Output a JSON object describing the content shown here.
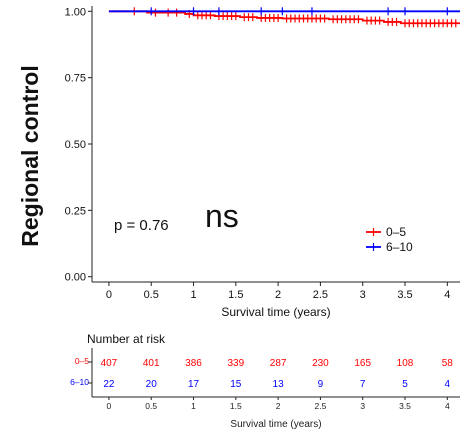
{
  "chart_data": {
    "type": "line",
    "subtype": "kaplan-meier",
    "ylabel": "Regional control",
    "xlabel": "Survival time (years)",
    "xlim": [
      -0.2,
      4.15
    ],
    "ylim": [
      -0.02,
      1.02
    ],
    "x_ticks": [
      "0",
      "0.5",
      "1",
      "1.5",
      "2",
      "2.5",
      "3",
      "3.5",
      "4"
    ],
    "y_ticks": [
      "0.00",
      "0.25",
      "0.50",
      "0.75",
      "1.00"
    ],
    "grid": false,
    "legend_position": "bottom-right",
    "annotations": {
      "pvalue": "p = 0.76",
      "significance": "ns"
    },
    "series": [
      {
        "name": "0–5",
        "color": "#ff0000",
        "steps": [
          [
            0,
            1.0
          ],
          [
            0.45,
            0.995
          ],
          [
            0.9,
            0.99
          ],
          [
            1.0,
            0.985
          ],
          [
            1.25,
            0.982
          ],
          [
            1.55,
            0.978
          ],
          [
            1.75,
            0.975
          ],
          [
            2.05,
            0.973
          ],
          [
            2.6,
            0.97
          ],
          [
            3.0,
            0.965
          ],
          [
            3.25,
            0.96
          ],
          [
            3.45,
            0.955
          ],
          [
            4.15,
            0.955
          ]
        ],
        "censor_times": [
          0.3,
          0.55,
          0.7,
          0.8,
          0.95,
          1.05,
          1.1,
          1.15,
          1.2,
          1.3,
          1.35,
          1.4,
          1.45,
          1.5,
          1.6,
          1.65,
          1.7,
          1.8,
          1.85,
          1.9,
          1.95,
          2.0,
          2.1,
          2.15,
          2.2,
          2.25,
          2.3,
          2.35,
          2.4,
          2.45,
          2.5,
          2.55,
          2.65,
          2.7,
          2.75,
          2.8,
          2.85,
          2.9,
          2.95,
          3.05,
          3.1,
          3.15,
          3.2,
          3.3,
          3.35,
          3.4,
          3.5,
          3.55,
          3.6,
          3.65,
          3.7,
          3.75,
          3.8,
          3.85,
          3.9,
          3.95,
          4.0,
          4.05,
          4.1
        ]
      },
      {
        "name": "6–10",
        "color": "#0000ff",
        "steps": [
          [
            0,
            1.0
          ],
          [
            4.15,
            1.0
          ]
        ],
        "censor_times": [
          0.5,
          1.0,
          1.3,
          1.8,
          2.05,
          2.4,
          3.3,
          3.5,
          4.0
        ]
      }
    ]
  },
  "risk_table": {
    "title": "Number at risk",
    "xlabel": "Survival time (years)",
    "times": [
      "0",
      "0.5",
      "1",
      "1.5",
      "2",
      "2.5",
      "3",
      "3.5",
      "4"
    ],
    "rows": [
      {
        "label": "0–5",
        "color": "#ff0000",
        "values": [
          "407",
          "401",
          "386",
          "339",
          "287",
          "230",
          "165",
          "108",
          "58"
        ]
      },
      {
        "label": "6–10",
        "color": "#0000ff",
        "values": [
          "22",
          "20",
          "17",
          "15",
          "13",
          "9",
          "7",
          "5",
          "4"
        ]
      }
    ]
  }
}
